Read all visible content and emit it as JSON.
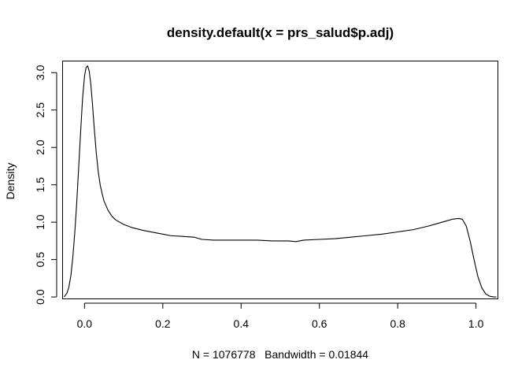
{
  "chart_data": {
    "type": "line",
    "title": "density.default(x = prs_salud$p.adj)",
    "xlabel": "N = 1076778   Bandwidth = 0.01844",
    "ylabel": "Density",
    "xlim": [
      -0.055,
      1.055
    ],
    "ylim": [
      -0.02,
      3.15
    ],
    "x_ticks": [
      0.0,
      0.2,
      0.4,
      0.6,
      0.8,
      1.0
    ],
    "x_tick_labels": [
      "0.0",
      "0.2",
      "0.4",
      "0.6",
      "0.8",
      "1.0"
    ],
    "y_ticks": [
      0.0,
      0.5,
      1.0,
      1.5,
      2.0,
      2.5,
      3.0
    ],
    "y_tick_labels": [
      "0.0",
      "0.5",
      "1.0",
      "1.5",
      "2.0",
      "2.5",
      "3.0"
    ],
    "grid": false,
    "legend": "none",
    "series": [
      {
        "x": [
          -0.052,
          -0.045,
          -0.04,
          -0.035,
          -0.03,
          -0.025,
          -0.02,
          -0.015,
          -0.01,
          -0.005,
          0.0,
          0.004,
          0.008,
          0.012,
          0.016,
          0.02,
          0.025,
          0.03,
          0.035,
          0.04,
          0.045,
          0.05,
          0.06,
          0.07,
          0.08,
          0.1,
          0.12,
          0.15,
          0.18,
          0.2,
          0.22,
          0.25,
          0.28,
          0.3,
          0.33,
          0.36,
          0.4,
          0.44,
          0.48,
          0.52,
          0.54,
          0.56,
          0.6,
          0.64,
          0.68,
          0.72,
          0.76,
          0.8,
          0.84,
          0.88,
          0.9,
          0.92,
          0.94,
          0.955,
          0.965,
          0.975,
          0.985,
          0.995,
          1.005,
          1.015,
          1.025,
          1.035,
          1.045,
          1.052
        ],
        "y": [
          0.0,
          0.05,
          0.13,
          0.28,
          0.52,
          0.85,
          1.25,
          1.72,
          2.2,
          2.65,
          2.95,
          3.07,
          3.09,
          3.02,
          2.85,
          2.6,
          2.25,
          1.93,
          1.68,
          1.5,
          1.38,
          1.28,
          1.16,
          1.08,
          1.03,
          0.97,
          0.93,
          0.89,
          0.86,
          0.84,
          0.82,
          0.81,
          0.8,
          0.77,
          0.76,
          0.76,
          0.76,
          0.76,
          0.75,
          0.75,
          0.74,
          0.76,
          0.77,
          0.78,
          0.8,
          0.82,
          0.84,
          0.87,
          0.9,
          0.95,
          0.98,
          1.01,
          1.04,
          1.05,
          1.04,
          0.95,
          0.75,
          0.5,
          0.27,
          0.12,
          0.04,
          0.01,
          0.0,
          0.0
        ]
      }
    ]
  }
}
